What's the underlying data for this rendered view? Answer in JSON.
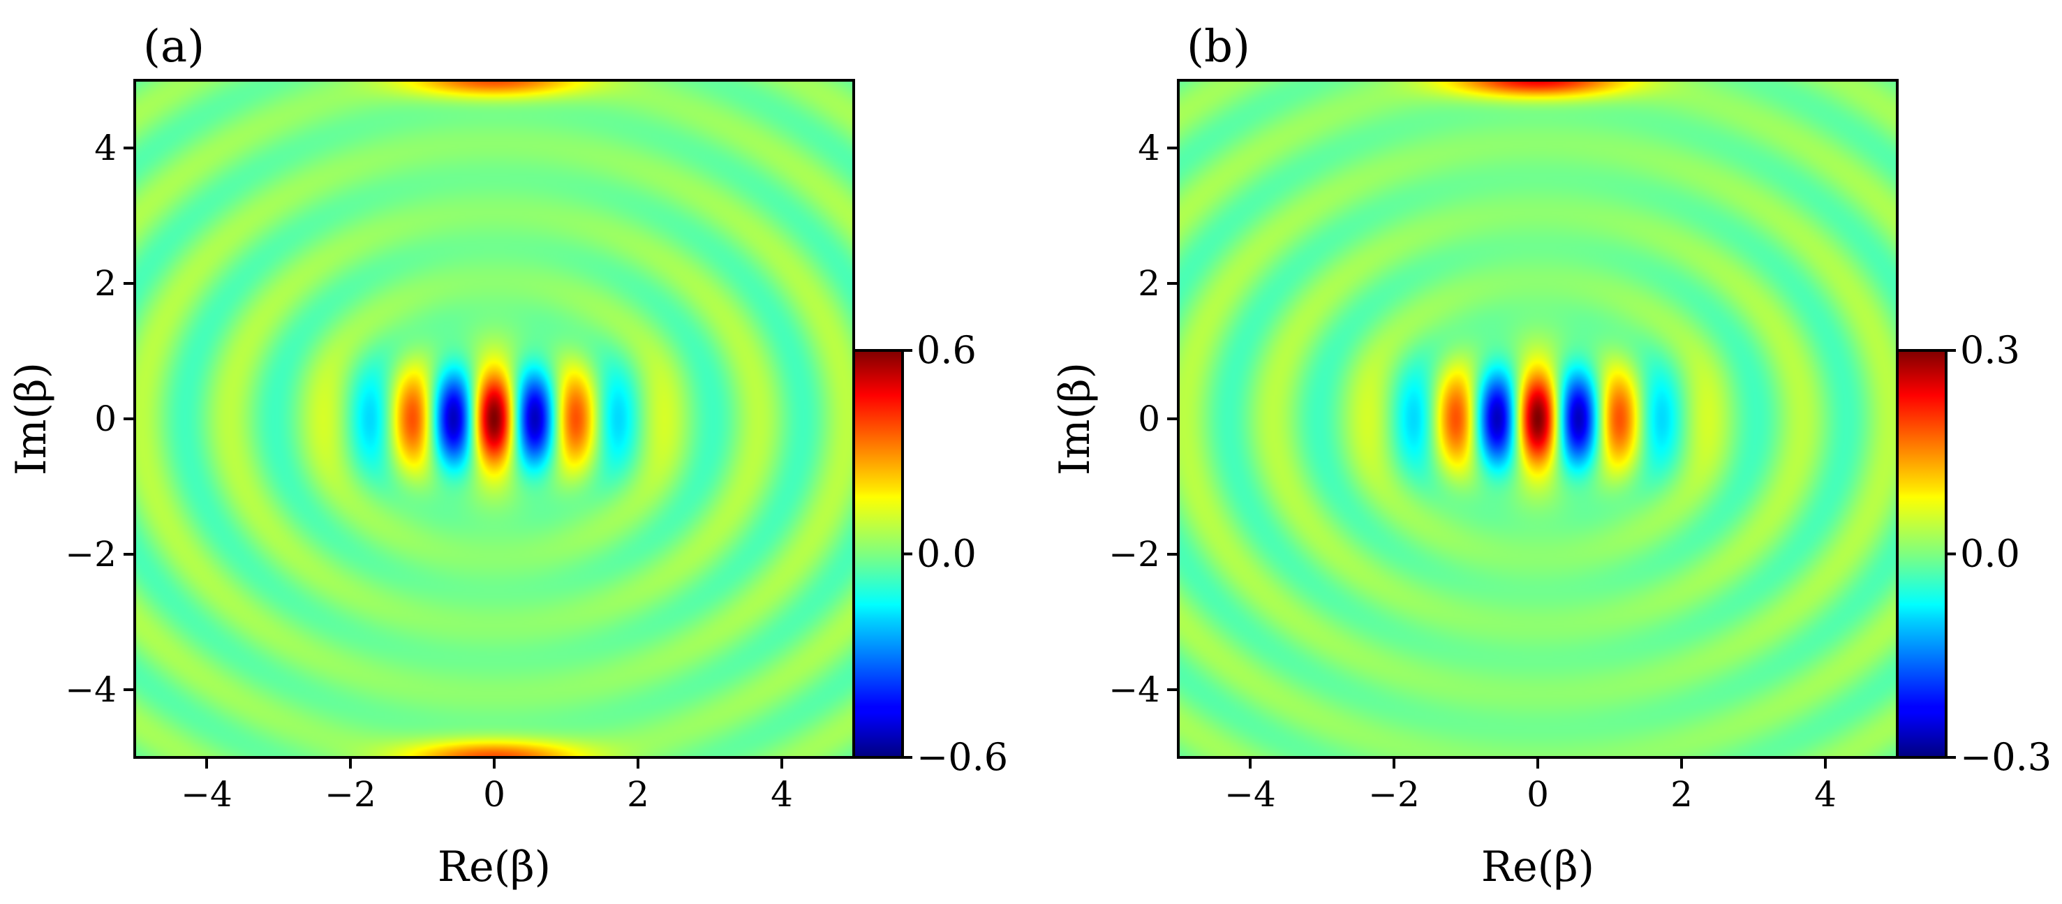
{
  "chart_data": [
    {
      "type": "heatmap",
      "panel_label": "(a)",
      "title": "",
      "xlabel": "Re(β)",
      "ylabel": "Im(β)",
      "xlim": [
        -5,
        5
      ],
      "ylim": [
        -5,
        5
      ],
      "xticks": [
        -4,
        -2,
        0,
        2,
        4
      ],
      "yticks": [
        -4,
        -2,
        0,
        2,
        4
      ],
      "xtick_labels": [
        "−4",
        "−2",
        "0",
        "2",
        "4"
      ],
      "ytick_labels": [
        "−4",
        "−2",
        "0",
        "2",
        "4"
      ],
      "colormap": "jet",
      "colorbar": {
        "min": -0.6,
        "max": 0.6,
        "ticks": [
          0.6,
          0.0,
          -0.6
        ],
        "tick_labels": [
          "0.6",
          "0.0",
          "−0.6"
        ],
        "placement": "right-lower"
      },
      "field": {
        "description_values": "Wigner-function-like interference pattern",
        "central_fringe_amplitude": 0.6,
        "central_fringe_wavenumber": 5.4,
        "central_fringe_parity": "cos",
        "central_extent": [
          2.3,
          0.5
        ],
        "ring_amplitude": 0.045,
        "ring_wavenumber": 5.6,
        "edge_lobe_centers": [
          [
            0,
            5.0
          ],
          [
            0,
            -5.0
          ]
        ],
        "edge_lobe_amplitude": 0.34
      },
      "grid": false
    },
    {
      "type": "heatmap",
      "panel_label": "(b)",
      "title": "",
      "xlabel": "Re(β)",
      "ylabel": "Im(β)",
      "xlim": [
        -5,
        5
      ],
      "ylim": [
        -5,
        5
      ],
      "xticks": [
        -4,
        -2,
        0,
        2,
        4
      ],
      "yticks": [
        -4,
        -2,
        0,
        2,
        4
      ],
      "xtick_labels": [
        "−4",
        "−2",
        "0",
        "2",
        "4"
      ],
      "ytick_labels": [
        "−4",
        "−2",
        "0",
        "2",
        "4"
      ],
      "colormap": "jet",
      "colorbar": {
        "min": -0.3,
        "max": 0.3,
        "ticks": [
          0.3,
          0.0,
          -0.3
        ],
        "tick_labels": [
          "0.3",
          "0.0",
          "−0.3"
        ],
        "placement": "right-lower"
      },
      "field": {
        "description_values": "Wigner-function-like interference pattern",
        "central_fringe_amplitude": 0.3,
        "central_fringe_wavenumber": 5.4,
        "central_fringe_parity": "cos",
        "central_extent": [
          2.3,
          0.5
        ],
        "ring_amplitude": 0.022,
        "ring_wavenumber": 5.6,
        "edge_lobe_centers": [
          [
            0,
            5.0
          ]
        ],
        "edge_lobe_amplitude": 0.22
      },
      "grid": false
    }
  ]
}
